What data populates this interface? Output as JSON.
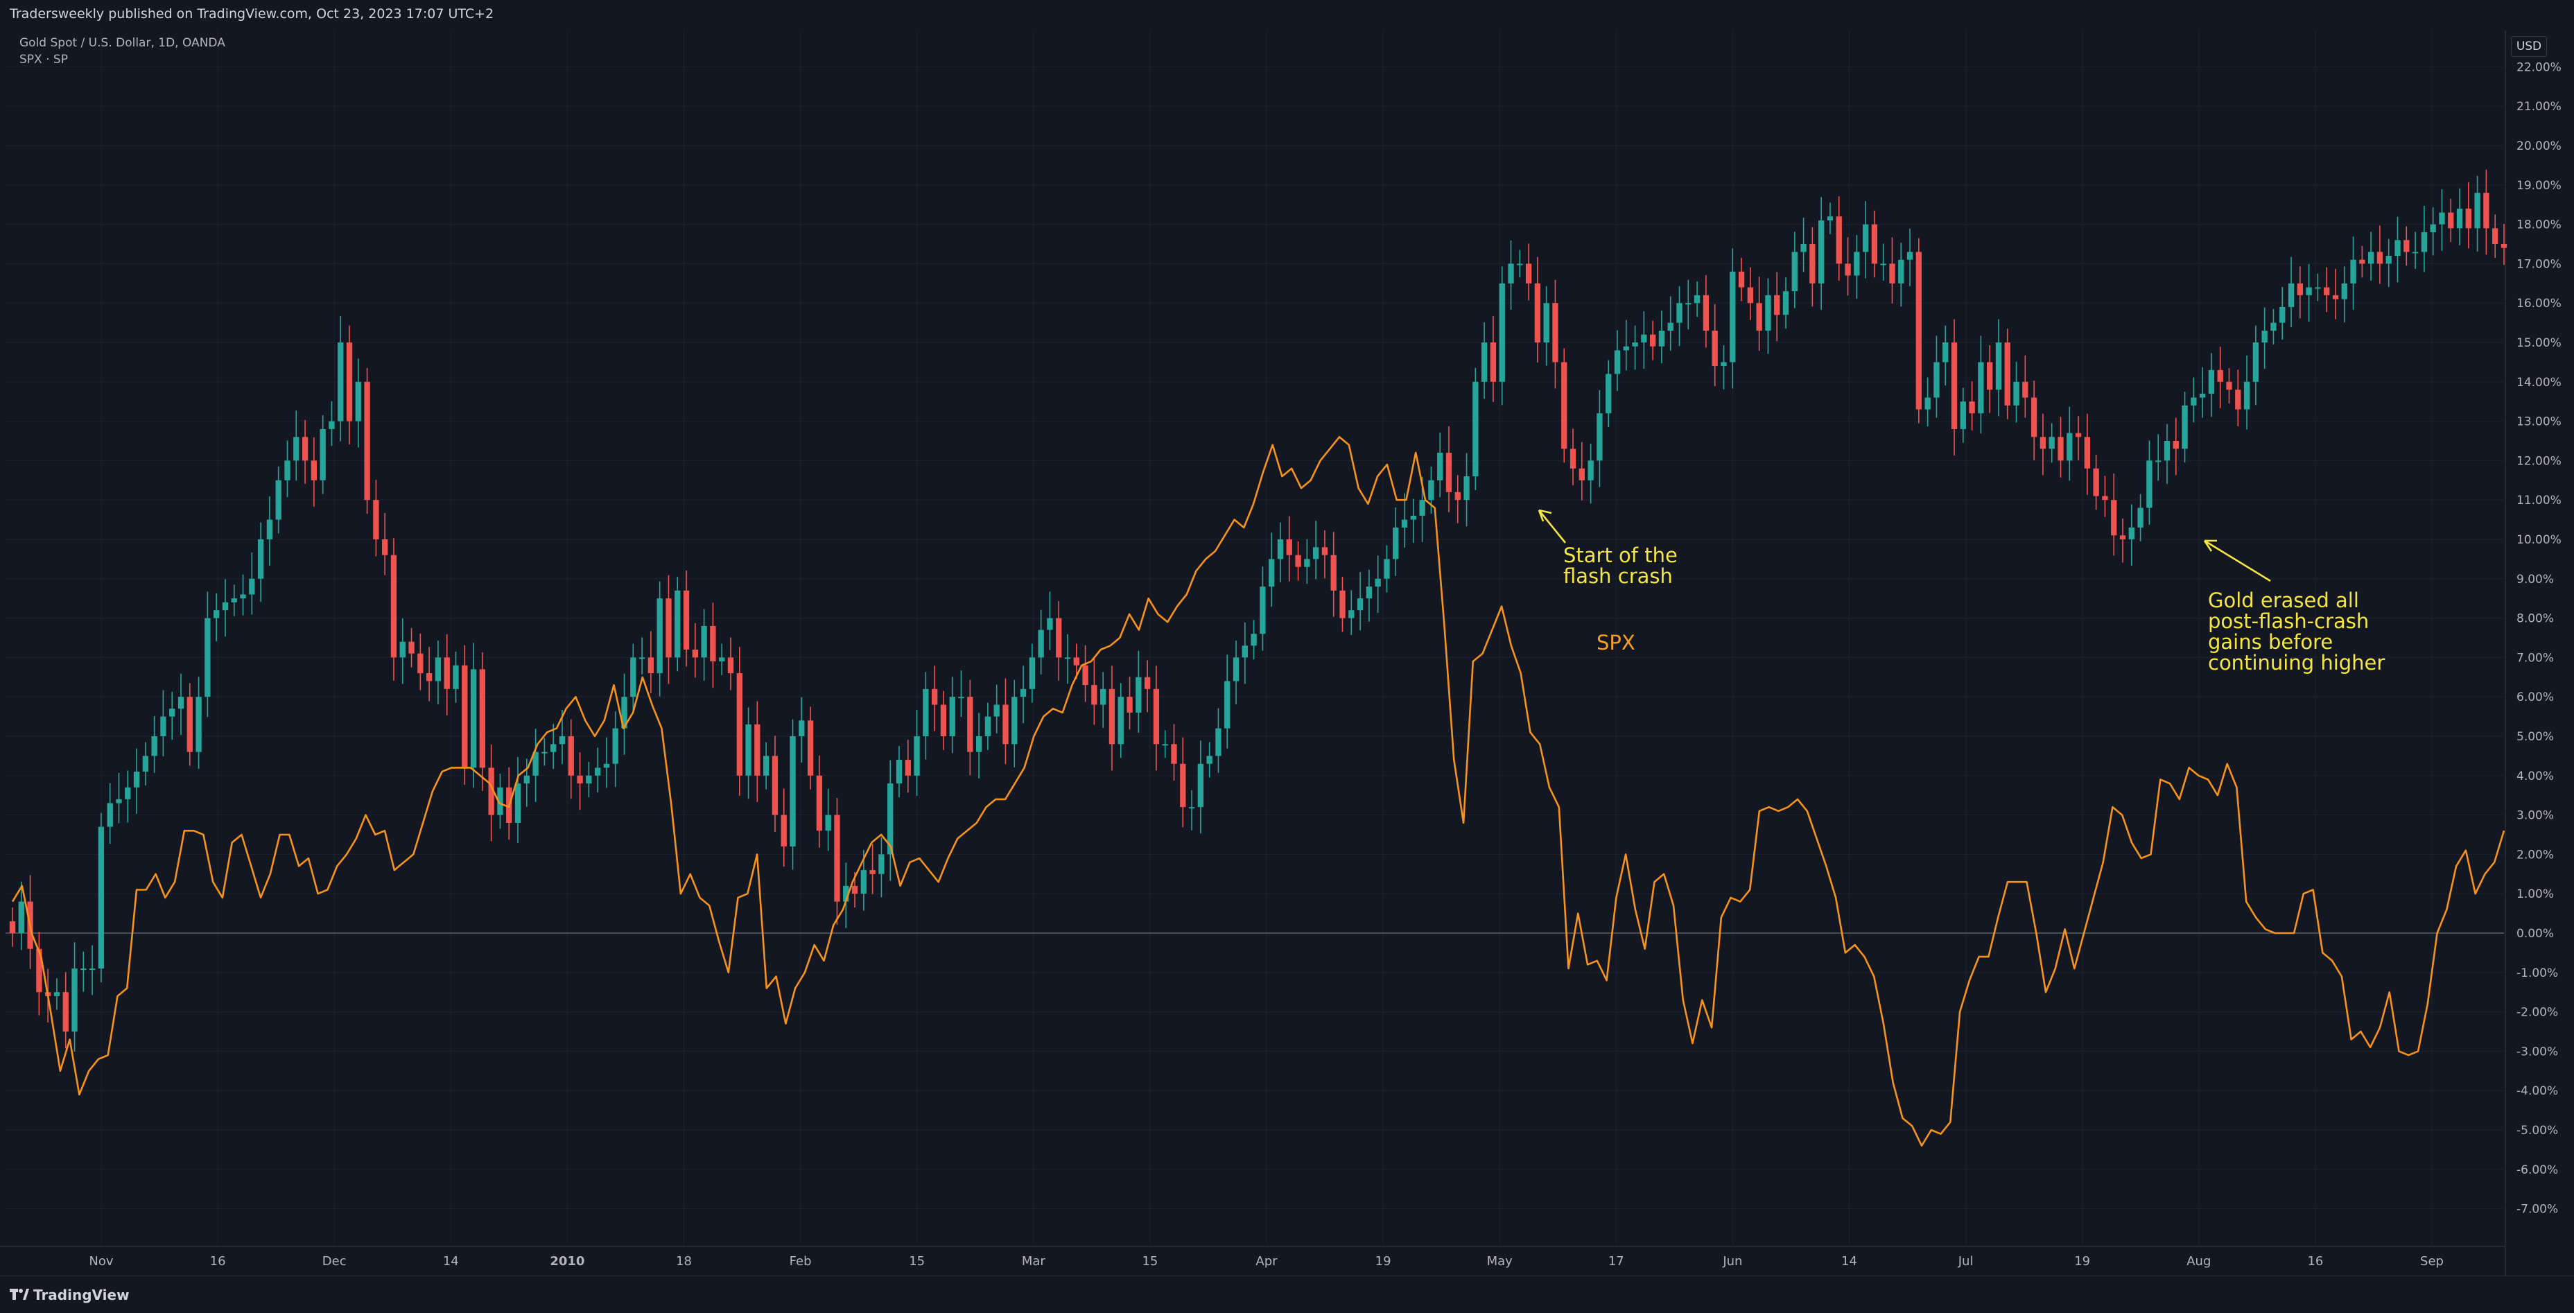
{
  "header": {
    "published": "Tradersweekly published on TradingView.com, Oct 23, 2023 17:07 UTC+2",
    "symbol": "Gold Spot / U.S. Dollar, 1D, OANDA",
    "overlay": "SPX · SP"
  },
  "price_scale": {
    "currency": "USD"
  },
  "footer": {
    "brand": "TradingView"
  },
  "annotations": {
    "flash_crash_line1": "Start of the",
    "flash_crash_line2": "flash crash",
    "gold_line1": "Gold erased all",
    "gold_line2": "post-flash-crash",
    "gold_line3": "gains before",
    "gold_line4": "continuing higher",
    "spx_label": "SPX"
  },
  "colors": {
    "background": "#131722",
    "up": "#26a69a",
    "down": "#ef5350",
    "spx": "#f7931a",
    "annotation": "#f5e642",
    "axis_text": "#b2b5be",
    "grid": "#1e222d"
  },
  "icons": {
    "logo": "tradingview-logo-icon"
  },
  "chart_data": {
    "type": "candlestick-with-line-overlay",
    "xlabel": "",
    "ylabel": "",
    "x_tick_labels": [
      "Nov",
      "16",
      "Dec",
      "14",
      "2010",
      "18",
      "Feb",
      "15",
      "Mar",
      "15",
      "Apr",
      "19",
      "May",
      "17",
      "Jun",
      "14",
      "Jul",
      "19",
      "Aug",
      "16",
      "Sep"
    ],
    "y_tick_labels": [
      "22.00%",
      "21.00%",
      "20.00%",
      "19.00%",
      "18.00%",
      "17.00%",
      "16.00%",
      "15.00%",
      "14.00%",
      "13.00%",
      "12.00%",
      "11.00%",
      "10.00%",
      "9.00%",
      "8.00%",
      "7.00%",
      "6.00%",
      "5.00%",
      "4.00%",
      "3.00%",
      "2.00%",
      "1.00%",
      "0.00%",
      "-1.00%",
      "-2.00%",
      "-3.00%",
      "-4.00%",
      "-5.00%",
      "-6.00%",
      "-7.00%"
    ],
    "ylim": [
      -7.6,
      22.3
    ],
    "y_unit": "%",
    "gold_close_pct": [
      0.0,
      0.8,
      -0.4,
      -1.5,
      -1.6,
      -1.5,
      -2.5,
      -0.9,
      -0.9,
      -0.9,
      2.7,
      3.3,
      3.4,
      3.7,
      4.1,
      4.5,
      5.0,
      5.5,
      5.7,
      6.0,
      4.6,
      6.0,
      8.0,
      8.2,
      8.4,
      8.5,
      8.6,
      9.0,
      10.0,
      10.5,
      11.5,
      12.0,
      12.6,
      12.0,
      11.5,
      12.8,
      13.0,
      15.0,
      13.0,
      14.0,
      11.0,
      10.0,
      9.6,
      7.0,
      7.4,
      7.1,
      6.6,
      6.4,
      7.0,
      6.2,
      6.8,
      4.2,
      6.7,
      4.2,
      3.0,
      3.7,
      2.8,
      3.8,
      4.0,
      4.6,
      4.6,
      4.8,
      5.0,
      4.0,
      3.8,
      4.0,
      4.2,
      4.3,
      5.2,
      6.0,
      7.0,
      7.0,
      6.6,
      8.5,
      7.0,
      8.7,
      7.2,
      7.0,
      7.8,
      6.9,
      7.0,
      6.6,
      4.0,
      5.3,
      4.0,
      4.5,
      3.0,
      2.2,
      5.0,
      5.4,
      4.0,
      2.6,
      3.0,
      0.8,
      1.2,
      1.0,
      1.6,
      1.5,
      2.0,
      3.8,
      4.4,
      4.0,
      5.0,
      6.2,
      5.8,
      5.0,
      6.0,
      6.0,
      4.6,
      5.0,
      5.5,
      5.8,
      4.8,
      6.0,
      6.2,
      7.0,
      7.7,
      8.0,
      7.0,
      7.0,
      6.8,
      6.3,
      5.8,
      6.2,
      4.8,
      6.0,
      5.6,
      6.5,
      6.2,
      4.8,
      4.8,
      4.3,
      3.2,
      3.2,
      4.3,
      4.5,
      5.2,
      6.4,
      7.0,
      7.3,
      7.6,
      8.8,
      9.5,
      10.0,
      9.6,
      9.3,
      9.5,
      9.8,
      9.6,
      8.7,
      8.0,
      8.2,
      8.5,
      8.8,
      9.0,
      9.5,
      10.3,
      10.5,
      10.6,
      11.0,
      11.5,
      12.2,
      11.2,
      11.0,
      11.6,
      14.0,
      15.0,
      14.0,
      16.5,
      17.0,
      17.0,
      16.5,
      15.0,
      16.0,
      14.5,
      12.3,
      11.8,
      11.5,
      12.0,
      13.2,
      14.2,
      14.8,
      14.9,
      15.0,
      15.2,
      14.9,
      15.3,
      15.5,
      16.0,
      16.0,
      16.2,
      15.3,
      14.4,
      14.5,
      16.8,
      16.4,
      16.0,
      15.3,
      16.2,
      15.7,
      16.3,
      17.3,
      17.5,
      16.5,
      18.1,
      18.2,
      17.0,
      16.7,
      17.3,
      18.0,
      17.0,
      17.0,
      16.5,
      17.1,
      17.3,
      13.3,
      13.6,
      14.5,
      15.0,
      12.8,
      13.5,
      13.2,
      14.5,
      13.8,
      15.0,
      13.4,
      14.0,
      13.6,
      12.6,
      12.3,
      12.6,
      12.0,
      12.7,
      12.6,
      11.8,
      11.1,
      11.0,
      10.1,
      10.0,
      10.3,
      10.8,
      12.0,
      12.0,
      12.5,
      12.3,
      13.4,
      13.6,
      13.7,
      14.3,
      14.0,
      13.8,
      13.3,
      14.0,
      15.0,
      15.3,
      15.5,
      15.9,
      16.5,
      16.2,
      16.4,
      16.4,
      16.2,
      16.1,
      16.5,
      17.1,
      17.0,
      17.3,
      17.0,
      17.2,
      17.6,
      17.3,
      17.3,
      17.8,
      18.0,
      18.3,
      17.9,
      18.4,
      17.9,
      18.8,
      17.9,
      17.5,
      17.4
    ],
    "series": [
      {
        "name": "SPX",
        "values_pct": [
          0.8,
          1.2,
          0.0,
          -0.6,
          -2.0,
          -3.5,
          -2.7,
          -4.1,
          -3.5,
          -3.2,
          -3.1,
          -1.6,
          -1.4,
          1.1,
          1.1,
          1.5,
          0.9,
          1.3,
          2.6,
          2.6,
          2.5,
          1.3,
          0.9,
          2.3,
          2.5,
          1.7,
          0.9,
          1.5,
          2.5,
          2.5,
          1.7,
          1.9,
          1.0,
          1.1,
          1.7,
          2.0,
          2.4,
          3.0,
          2.5,
          2.6,
          1.6,
          1.8,
          2.0,
          2.8,
          3.6,
          4.1,
          4.2,
          4.2,
          4.2,
          4.0,
          3.8,
          3.3,
          3.2,
          4.0,
          4.2,
          4.8,
          5.1,
          5.2,
          5.7,
          6.0,
          5.4,
          5.0,
          5.4,
          6.3,
          5.2,
          5.6,
          6.5,
          5.8,
          5.2,
          3.3,
          1.0,
          1.5,
          0.9,
          0.7,
          -0.2,
          -1.0,
          0.9,
          1.0,
          2.0,
          -1.4,
          -1.1,
          -2.3,
          -1.4,
          -1.0,
          -0.3,
          -0.7,
          0.2,
          0.6,
          1.3,
          1.8,
          2.3,
          2.5,
          2.2,
          1.2,
          1.8,
          1.9,
          1.6,
          1.3,
          1.9,
          2.4,
          2.6,
          2.8,
          3.2,
          3.4,
          3.4,
          3.8,
          4.2,
          5.0,
          5.5,
          5.7,
          5.6,
          6.3,
          6.8,
          6.9,
          7.2,
          7.3,
          7.5,
          8.1,
          7.7,
          8.5,
          8.1,
          7.9,
          8.3,
          8.6,
          9.2,
          9.5,
          9.7,
          10.1,
          10.5,
          10.3,
          10.9,
          11.7,
          12.4,
          11.6,
          11.8,
          11.3,
          11.5,
          12.0,
          12.3,
          12.6,
          12.4,
          11.3,
          10.9,
          11.6,
          11.9,
          11.0,
          11.0,
          12.2,
          11.0,
          10.8,
          7.8,
          4.4,
          2.8,
          6.9,
          7.1,
          7.7,
          8.3,
          7.3,
          6.6,
          5.1,
          4.8,
          3.7,
          3.2,
          -0.9,
          0.5,
          -0.8,
          -0.7,
          -1.2,
          0.9,
          2.0,
          0.6,
          -0.4,
          1.3,
          1.5,
          0.7,
          -1.7,
          -2.8,
          -1.7,
          -2.4,
          0.4,
          0.9,
          0.8,
          1.1,
          3.1,
          3.2,
          3.1,
          3.2,
          3.4,
          3.1,
          2.4,
          1.7,
          0.9,
          -0.5,
          -0.3,
          -0.6,
          -1.1,
          -2.3,
          -3.8,
          -4.7,
          -4.9,
          -5.4,
          -5.0,
          -5.1,
          -4.8,
          -2.0,
          -1.2,
          -0.6,
          -0.6,
          0.4,
          1.3,
          1.3,
          1.3,
          0.0,
          -1.5,
          -0.9,
          0.1,
          -0.9,
          0.0,
          0.9,
          1.8,
          3.2,
          3.0,
          2.3,
          1.9,
          2.0,
          3.9,
          3.8,
          3.4,
          4.2,
          4.0,
          3.9,
          3.5,
          4.3,
          3.7,
          0.8,
          0.4,
          0.1,
          0.0,
          0.0,
          0.0,
          1.0,
          1.1,
          -0.5,
          -0.7,
          -1.1,
          -2.7,
          -2.5,
          -2.9,
          -2.4,
          -1.5,
          -3.0,
          -3.1,
          -3.0,
          -1.8,
          0.0,
          0.6,
          1.7,
          2.1,
          1.0,
          1.5,
          1.8,
          2.6
        ]
      }
    ]
  }
}
